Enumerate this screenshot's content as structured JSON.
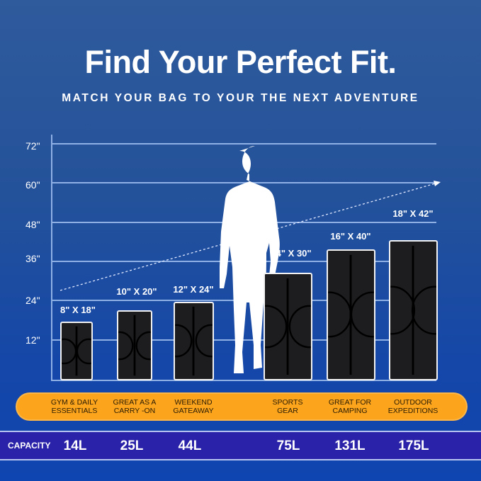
{
  "title": "Find Your Perfect Fit.",
  "subtitle": "MATCH YOUR BAG TO YOUR THE NEXT ADVENTURE",
  "y_axis": {
    "ticks": [
      "72\"",
      "60\"",
      "48\"",
      "36\"",
      "24\"",
      "12\""
    ]
  },
  "bags": [
    {
      "size": "8\" X 18\"",
      "use_line1": "GYM & DAILY",
      "use_line2": "ESSENTIALS",
      "capacity": "14L"
    },
    {
      "size": "10\" X 20\"",
      "use_line1": "GREAT AS A",
      "use_line2": "CARRY -ON",
      "capacity": "25L"
    },
    {
      "size": "12\" X 24\"",
      "use_line1": "WEEKEND",
      "use_line2": "GATEAWAY",
      "capacity": "44L"
    },
    {
      "size": "14\" X 30\"",
      "use_line1": "SPORTS",
      "use_line2": "GEAR",
      "capacity": "75L"
    },
    {
      "size": "16\" X 40\"",
      "use_line1": "GREAT FOR",
      "use_line2": "CAMPING",
      "capacity": "131L"
    },
    {
      "size": "18\" X 42\"",
      "use_line1": "OUTDOOR",
      "use_line2": "EXPEDITIONS",
      "capacity": "175L"
    }
  ],
  "capacity_label": "CAPACITY",
  "colors": {
    "band": "#fba41c",
    "capacity_bar": "#2a22a8",
    "background": "#1f4fa0"
  }
}
